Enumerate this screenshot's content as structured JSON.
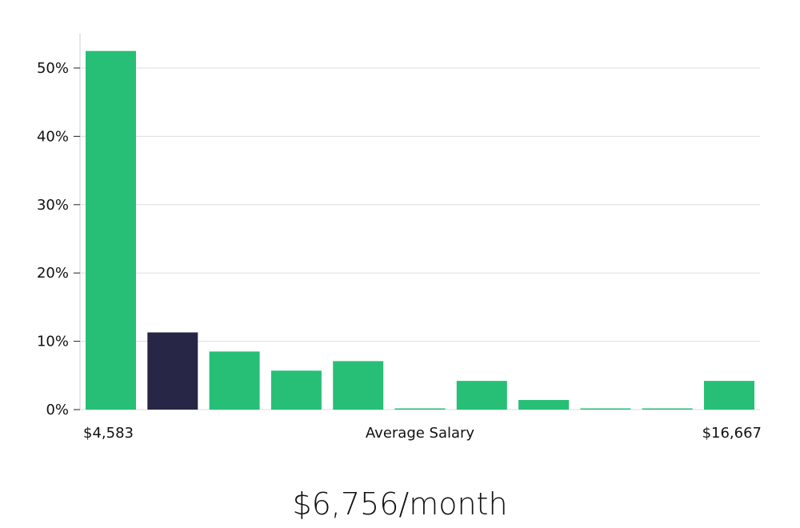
{
  "chart_data": {
    "type": "bar",
    "title": "",
    "xlabel": "Average Salary",
    "ylabel": "",
    "x_range_labels": {
      "min": "$4,583",
      "max": "$16,667"
    },
    "ylim": [
      0,
      55
    ],
    "yticks": [
      0,
      10,
      20,
      30,
      40,
      50
    ],
    "ytick_labels": [
      "0%",
      "10%",
      "20%",
      "30%",
      "40%",
      "50%"
    ],
    "grid": true,
    "values": [
      52.5,
      11.3,
      8.5,
      5.7,
      7.1,
      0.1,
      4.2,
      1.4,
      0.1,
      0.1,
      4.2
    ],
    "highlight_index": 1,
    "colors": {
      "bar": "#27bf76",
      "highlight": "#282646",
      "grid": "#dddddd",
      "axis": "#cccccc"
    }
  },
  "headline": "$6,756/month"
}
